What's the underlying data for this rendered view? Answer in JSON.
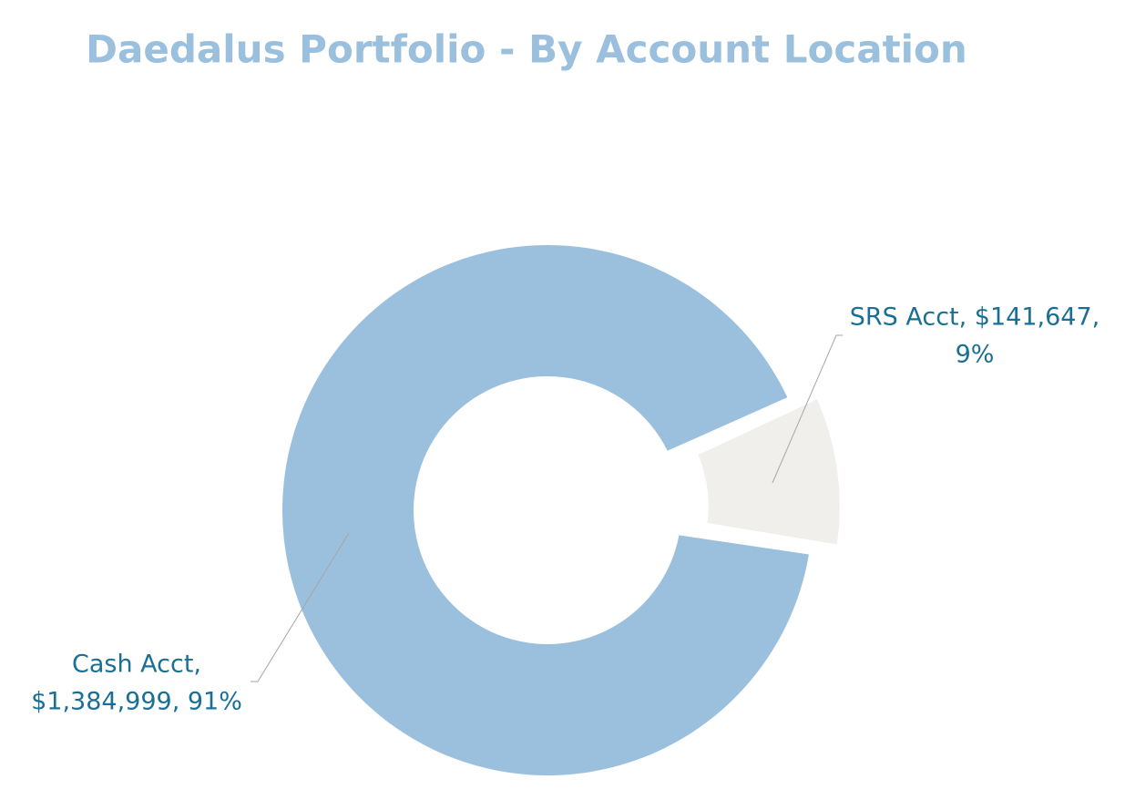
{
  "chart_data": {
    "type": "donut",
    "title": "Daedalus  Portfolio - By Account Location",
    "categories": [
      "Cash Acct",
      "SRS Acct"
    ],
    "values": [
      1384999,
      141647
    ],
    "percents": [
      91,
      9
    ],
    "data_labels": [
      [
        "Cash Acct,",
        "$1,384,999, 91%"
      ],
      [
        "SRS Acct, $141,647,",
        "9%"
      ]
    ],
    "colors": [
      "#9bc0de",
      "#f0efec"
    ]
  }
}
